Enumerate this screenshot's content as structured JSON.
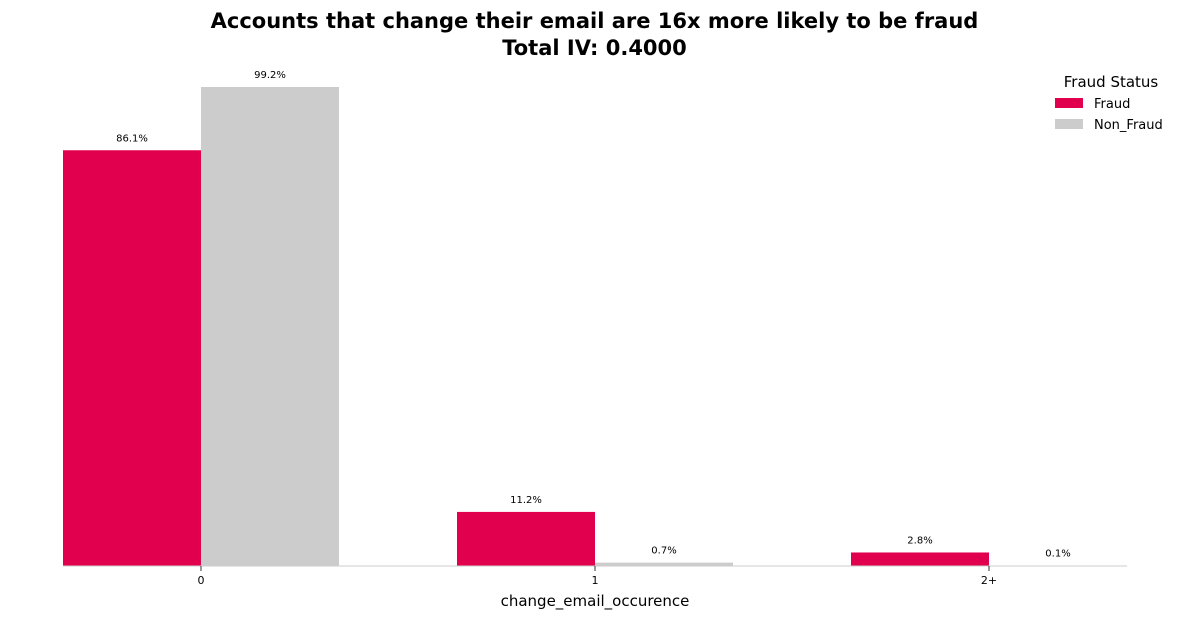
{
  "chart_data": {
    "type": "bar",
    "title": "Accounts that change their email are 16x more likely to be fraud",
    "subtitle": "Total IV: 0.4000",
    "xlabel": "change_email_occurence",
    "ylabel": "",
    "categories": [
      "0",
      "1",
      "2+"
    ],
    "ylim": [
      0,
      100
    ],
    "grid": false,
    "legend": {
      "title": "Fraud Status",
      "placement": "top-right"
    },
    "series": [
      {
        "name": "Fraud",
        "color": "#e0004d",
        "values": [
          86.1,
          11.2,
          2.8
        ],
        "labels": [
          "86.1%",
          "11.2%",
          "2.8%"
        ]
      },
      {
        "name": "Non_Fraud",
        "color": "#cccccc",
        "values": [
          99.2,
          0.7,
          0.1
        ],
        "labels": [
          "99.2%",
          "0.7%",
          "0.1%"
        ]
      }
    ]
  }
}
